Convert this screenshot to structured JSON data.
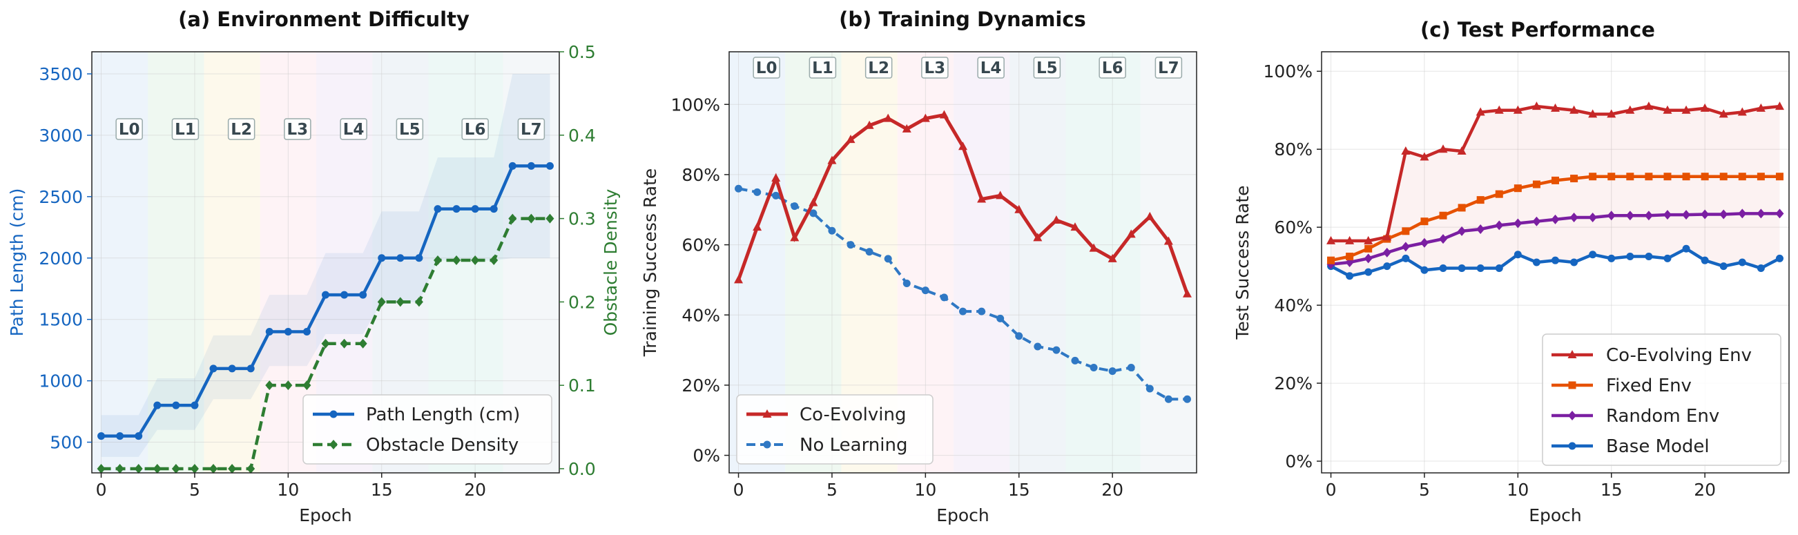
{
  "chart_data": [
    {
      "type": "line",
      "title": "(a) Environment Difficulty",
      "xlabel": "Epoch",
      "ylabel": "Path Length (cm)",
      "ylabel_right": "Obstacle Density",
      "xlim": [
        -0.5,
        24.5
      ],
      "ylim": [
        250,
        3680
      ],
      "ylim_right": [
        -0.005,
        0.5
      ],
      "xticks": [
        0,
        5,
        10,
        15,
        20
      ],
      "yticks": [
        500,
        1000,
        1500,
        2000,
        2500,
        3000,
        3500
      ],
      "yticks_right": [
        0.0,
        0.1,
        0.2,
        0.3,
        0.4,
        0.5
      ],
      "level_labels": [
        "L0",
        "L1",
        "L2",
        "L3",
        "L4",
        "L5",
        "L6",
        "L7"
      ],
      "level_label_x": [
        1.5,
        4.5,
        7.5,
        10.5,
        13.5,
        16.5,
        20,
        23
      ],
      "legend": "lower right",
      "grid": true,
      "colors": {
        "path": "#1565c0",
        "density": "#2e7d32"
      },
      "series": [
        {
          "name": "Path Length (cm)",
          "axis": "left",
          "x": [
            0,
            1,
            2,
            3,
            4,
            5,
            6,
            7,
            8,
            9,
            10,
            11,
            12,
            13,
            14,
            15,
            16,
            17,
            18,
            19,
            20,
            21,
            22,
            23,
            24
          ],
          "values": [
            550,
            550,
            550,
            800,
            800,
            800,
            1100,
            1100,
            1100,
            1400,
            1400,
            1400,
            1700,
            1700,
            1700,
            2000,
            2000,
            2000,
            2400,
            2400,
            2400,
            2400,
            2750,
            2750,
            2750
          ],
          "band_lower": [
            380,
            380,
            380,
            600,
            600,
            600,
            850,
            850,
            850,
            1120,
            1120,
            1120,
            1380,
            1380,
            1380,
            1640,
            1640,
            1640,
            1980,
            1980,
            1980,
            1980,
            2000,
            2000,
            2000
          ],
          "band_upper": [
            720,
            720,
            720,
            1020,
            1020,
            1020,
            1370,
            1370,
            1370,
            1700,
            1700,
            1700,
            2040,
            2040,
            2040,
            2380,
            2380,
            2380,
            2820,
            2820,
            2820,
            2820,
            3500,
            3500,
            3500
          ]
        },
        {
          "name": "Obstacle Density",
          "axis": "right",
          "x": [
            0,
            1,
            2,
            3,
            4,
            5,
            6,
            7,
            8,
            9,
            10,
            11,
            12,
            13,
            14,
            15,
            16,
            17,
            18,
            19,
            20,
            21,
            22,
            23,
            24
          ],
          "values": [
            0,
            0,
            0,
            0,
            0,
            0,
            0,
            0,
            0,
            0.1,
            0.1,
            0.1,
            0.15,
            0.15,
            0.15,
            0.2,
            0.2,
            0.2,
            0.25,
            0.25,
            0.25,
            0.25,
            0.3,
            0.3,
            0.3
          ]
        }
      ]
    },
    {
      "type": "line",
      "title": "(b) Training Dynamics",
      "xlabel": "Epoch",
      "ylabel": "Training Success Rate",
      "xlim": [
        -0.5,
        24.5
      ],
      "ylim": [
        -0.05,
        1.15
      ],
      "xticks": [
        0,
        5,
        10,
        15,
        20
      ],
      "yticks": [
        "0%",
        "20%",
        "40%",
        "60%",
        "80%",
        "100%"
      ],
      "level_labels": [
        "L0",
        "L1",
        "L2",
        "L3",
        "L4",
        "L5",
        "L6",
        "L7"
      ],
      "level_label_x": [
        1.5,
        4.5,
        7.5,
        10.5,
        13.5,
        16.5,
        20,
        23
      ],
      "legend": "lower left",
      "grid": true,
      "colors": {
        "coevolving": "#c62828",
        "nolearning": "#2f78c4"
      },
      "series": [
        {
          "name": "Co-Evolving",
          "x": [
            0,
            1,
            2,
            3,
            4,
            5,
            6,
            7,
            8,
            9,
            10,
            11,
            12,
            13,
            14,
            15,
            16,
            17,
            18,
            19,
            20,
            21,
            22,
            23,
            24
          ],
          "values": [
            0.5,
            0.65,
            0.79,
            0.62,
            0.72,
            0.84,
            0.9,
            0.94,
            0.96,
            0.93,
            0.96,
            0.97,
            0.88,
            0.73,
            0.74,
            0.7,
            0.62,
            0.67,
            0.65,
            0.59,
            0.56,
            0.63,
            0.68,
            0.61,
            0.46
          ]
        },
        {
          "name": "No Learning",
          "x": [
            0,
            1,
            2,
            3,
            4,
            5,
            6,
            7,
            8,
            9,
            10,
            11,
            12,
            13,
            14,
            15,
            16,
            17,
            18,
            19,
            20,
            21,
            22,
            23,
            24
          ],
          "values": [
            0.76,
            0.75,
            0.74,
            0.71,
            0.69,
            0.64,
            0.6,
            0.58,
            0.56,
            0.49,
            0.47,
            0.45,
            0.41,
            0.41,
            0.39,
            0.34,
            0.31,
            0.3,
            0.27,
            0.25,
            0.24,
            0.25,
            0.19,
            0.16,
            0.16
          ]
        }
      ]
    },
    {
      "type": "line",
      "title": "(c) Test Performance",
      "xlabel": "Epoch",
      "ylabel": "Test Success Rate",
      "xlim": [
        -0.5,
        24.5
      ],
      "ylim": [
        -0.03,
        1.05
      ],
      "xticks": [
        0,
        5,
        10,
        15,
        20
      ],
      "yticks": [
        "0%",
        "20%",
        "40%",
        "60%",
        "80%",
        "100%"
      ],
      "legend": "lower right",
      "grid": true,
      "colors": {
        "coevolving": "#c62828",
        "fixed": "#e65100",
        "random": "#7b1fa2",
        "base": "#1565c0"
      },
      "series": [
        {
          "name": "Co-Evolving Env",
          "marker": "triangle",
          "x": [
            0,
            1,
            2,
            3,
            4,
            5,
            6,
            7,
            8,
            9,
            10,
            11,
            12,
            13,
            14,
            15,
            16,
            17,
            18,
            19,
            20,
            21,
            22,
            23,
            24
          ],
          "values": [
            0.565,
            0.565,
            0.565,
            0.575,
            0.795,
            0.78,
            0.8,
            0.795,
            0.895,
            0.9,
            0.9,
            0.91,
            0.905,
            0.9,
            0.89,
            0.89,
            0.9,
            0.91,
            0.9,
            0.9,
            0.905,
            0.89,
            0.895,
            0.905,
            0.91
          ]
        },
        {
          "name": "Fixed Env",
          "marker": "square",
          "x": [
            0,
            1,
            2,
            3,
            4,
            5,
            6,
            7,
            8,
            9,
            10,
            11,
            12,
            13,
            14,
            15,
            16,
            17,
            18,
            19,
            20,
            21,
            22,
            23,
            24
          ],
          "values": [
            0.515,
            0.525,
            0.545,
            0.57,
            0.59,
            0.615,
            0.63,
            0.65,
            0.67,
            0.685,
            0.7,
            0.71,
            0.72,
            0.725,
            0.73,
            0.73,
            0.73,
            0.73,
            0.73,
            0.73,
            0.73,
            0.73,
            0.73,
            0.73,
            0.73
          ]
        },
        {
          "name": "Random Env",
          "marker": "diamond",
          "x": [
            0,
            1,
            2,
            3,
            4,
            5,
            6,
            7,
            8,
            9,
            10,
            11,
            12,
            13,
            14,
            15,
            16,
            17,
            18,
            19,
            20,
            21,
            22,
            23,
            24
          ],
          "values": [
            0.505,
            0.51,
            0.52,
            0.535,
            0.55,
            0.56,
            0.57,
            0.59,
            0.595,
            0.605,
            0.61,
            0.615,
            0.62,
            0.625,
            0.625,
            0.63,
            0.63,
            0.63,
            0.632,
            0.632,
            0.633,
            0.633,
            0.635,
            0.635,
            0.635
          ]
        },
        {
          "name": "Base Model",
          "marker": "circle",
          "x": [
            0,
            1,
            2,
            3,
            4,
            5,
            6,
            7,
            8,
            9,
            10,
            11,
            12,
            13,
            14,
            15,
            16,
            17,
            18,
            19,
            20,
            21,
            22,
            23,
            24
          ],
          "values": [
            0.5,
            0.475,
            0.485,
            0.5,
            0.52,
            0.49,
            0.495,
            0.495,
            0.495,
            0.495,
            0.53,
            0.51,
            0.515,
            0.51,
            0.53,
            0.52,
            0.525,
            0.525,
            0.52,
            0.545,
            0.515,
            0.5,
            0.51,
            0.495,
            0.52
          ]
        }
      ]
    }
  ]
}
